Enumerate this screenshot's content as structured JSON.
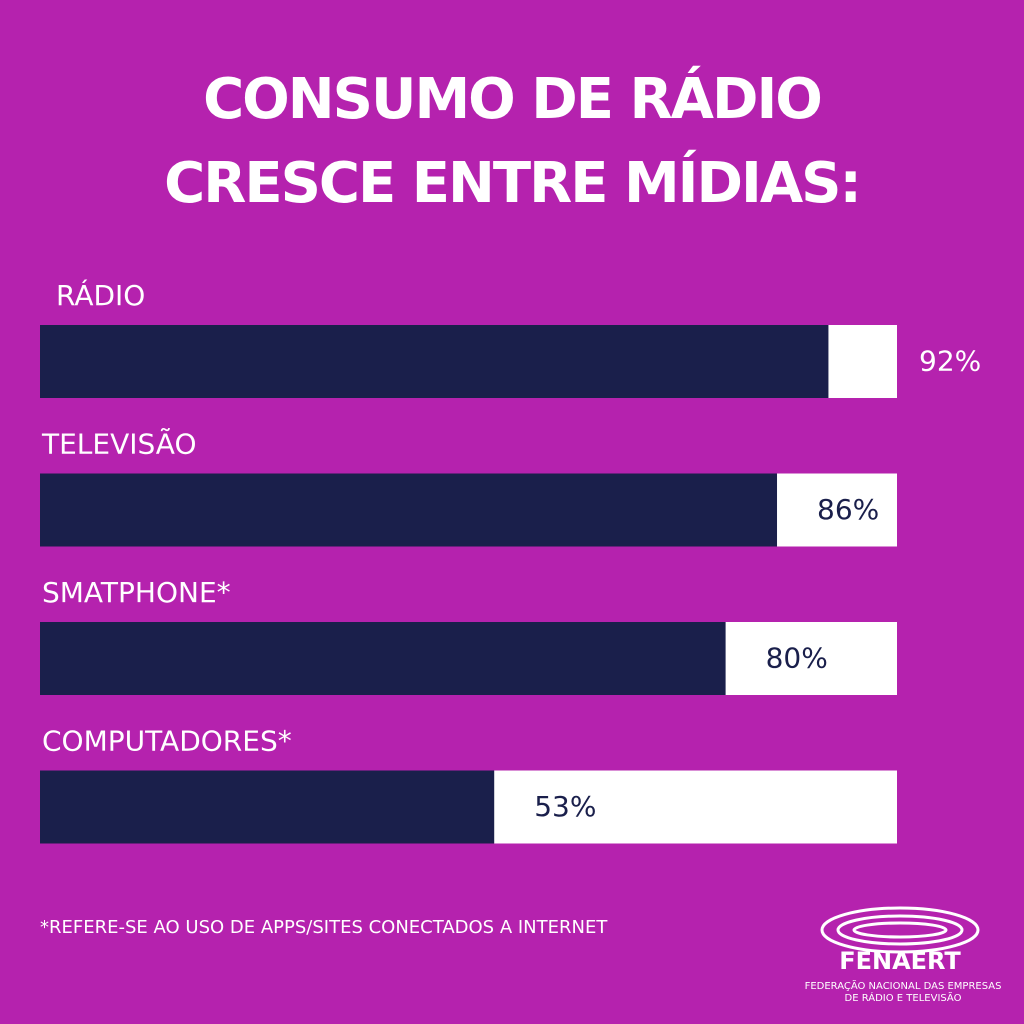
{
  "chart_data": {
    "type": "hbar",
    "title": [
      "CONSUMO DE RÁDIO",
      "CRESCE ENTRE MÍDIAS:"
    ],
    "categories": [
      "RÁDIO",
      "TELEVISÃO",
      "SMATPHONE*",
      "COMPUTADORES*"
    ],
    "values": [
      92,
      86,
      80,
      53
    ],
    "value_labels": [
      "92%",
      "86%",
      "80%",
      "53%"
    ],
    "color": "#1a1f4b",
    "track_color": "#ffffff",
    "xlim": [
      0,
      100
    ],
    "footnote": "*REFERE-SE AO USO DE APPS/SITES CONECTADOS A INTERNET"
  },
  "logo": {
    "name": "FENAERT",
    "subtitle": [
      "FEDERAÇÃO NACIONAL DAS EMPRESAS",
      "DE RÁDIO E TELEVISÃO"
    ]
  }
}
